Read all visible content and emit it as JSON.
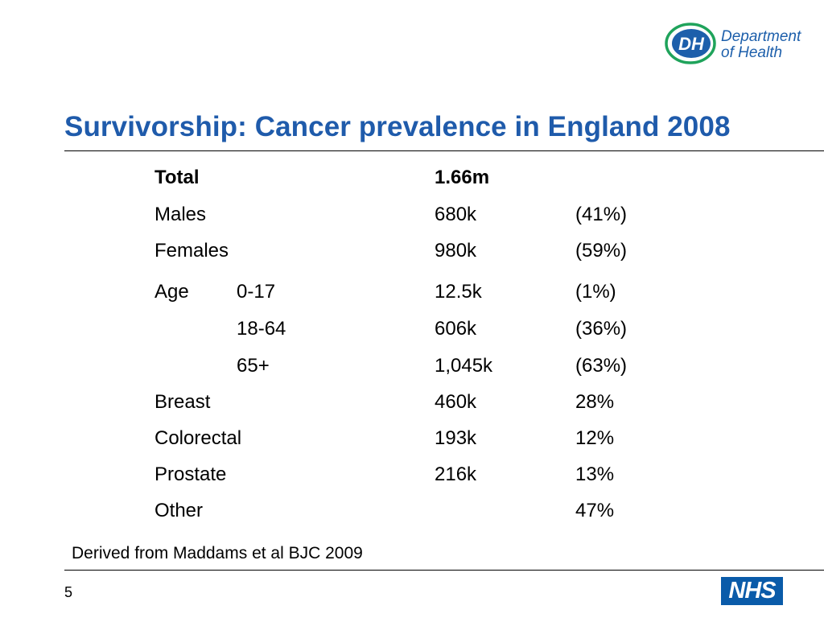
{
  "logo": {
    "badge_text": "DH",
    "line1": "Department",
    "line2": "of Health",
    "colors": {
      "blue": "#1d5fab",
      "green": "#1fa35b"
    }
  },
  "title": "Survivorship: Cancer prevalence in England 2008",
  "rows": [
    {
      "label": "Total",
      "sub": "",
      "value": "1.66m",
      "pct": ""
    },
    {
      "label": "Males",
      "sub": "",
      "value": "680k",
      "pct": "(41%)"
    },
    {
      "label": "Females",
      "sub": "",
      "value": "980k",
      "pct": "(59%)"
    },
    {
      "label": "Age",
      "sub": "0-17",
      "value": "12.5k",
      "pct": "(1%)"
    },
    {
      "label": "",
      "sub": "18-64",
      "value": "606k",
      "pct": "(36%)"
    },
    {
      "label": "",
      "sub": "65+",
      "value": "1,045k",
      "pct": "(63%)"
    },
    {
      "label": "Breast",
      "sub": "",
      "value": "460k",
      "pct": "28%"
    },
    {
      "label": "Colorectal",
      "sub": "",
      "value": "193k",
      "pct": "12%"
    },
    {
      "label": "Prostate",
      "sub": "",
      "value": "216k",
      "pct": "13%"
    },
    {
      "label": "Other",
      "sub": "",
      "value": "",
      "pct": "47%"
    }
  ],
  "source": "Derived from Maddams et al BJC 2009",
  "page_number": "5",
  "nhs_logo": "NHS",
  "colors": {
    "title": "#1f5bab",
    "nhs": "#0a5ba9"
  }
}
